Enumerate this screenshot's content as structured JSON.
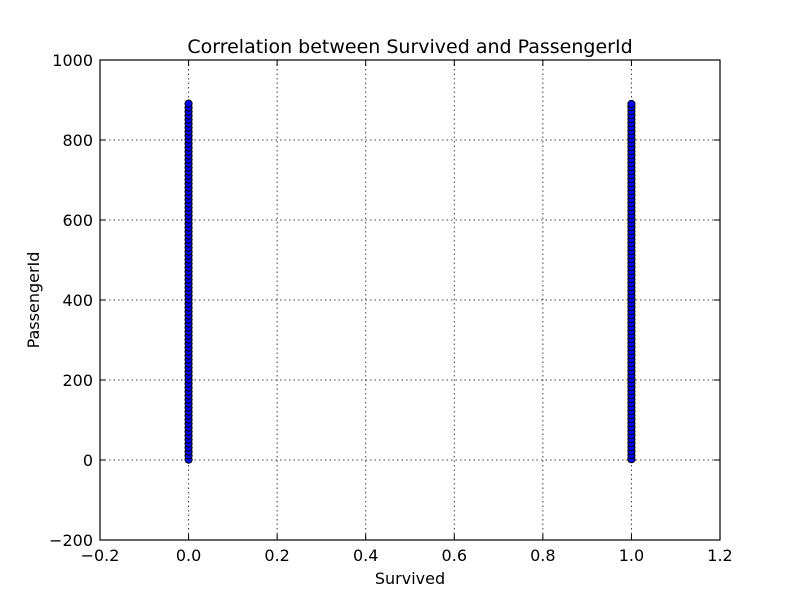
{
  "chart_data": {
    "type": "scatter",
    "title": "Correlation between Survived and PassengerId",
    "xlabel": "Survived",
    "ylabel": "PassengerId",
    "xlim": [
      -0.2,
      1.2
    ],
    "ylim": [
      -200,
      1000
    ],
    "x_ticks": [
      -0.2,
      0.0,
      0.2,
      0.4,
      0.6,
      0.8,
      1.0,
      1.2
    ],
    "x_tick_labels": [
      "−0.2",
      "0.0",
      "0.2",
      "0.4",
      "0.6",
      "0.8",
      "1.0",
      "1.2"
    ],
    "y_ticks": [
      -200,
      0,
      200,
      400,
      600,
      800,
      1000
    ],
    "y_tick_labels": [
      "−200",
      "0",
      "200",
      "400",
      "600",
      "800",
      "1000"
    ],
    "grid": true,
    "colors": {
      "marker_fill": "#0000ff",
      "marker_edge": "#000000"
    },
    "series": [
      {
        "x": [
          0,
          0,
          0,
          0,
          0,
          0,
          0,
          0,
          0,
          0,
          0,
          0,
          0,
          0,
          0,
          0,
          0,
          0,
          0,
          0,
          0,
          0,
          0,
          0,
          0,
          0,
          0,
          0,
          0,
          0,
          0,
          0,
          0,
          0,
          0,
          0,
          0,
          0,
          0,
          0,
          0,
          0,
          0,
          0,
          0,
          0,
          0,
          0,
          0,
          0,
          0,
          0,
          0,
          0,
          0,
          0,
          0,
          0,
          0,
          0,
          0,
          0,
          0,
          0,
          0,
          0,
          0,
          0,
          0,
          0,
          0,
          0,
          0,
          0,
          0,
          0,
          0,
          0,
          0,
          0,
          0,
          0,
          0,
          0,
          0,
          0,
          0,
          0,
          0,
          0,
          1,
          1,
          1,
          1,
          1,
          1,
          1,
          1,
          1,
          1,
          1,
          1,
          1,
          1,
          1,
          1,
          1,
          1,
          1,
          1,
          1,
          1,
          1,
          1,
          1,
          1,
          1,
          1,
          1,
          1,
          1,
          1,
          1,
          1,
          1,
          1,
          1,
          1,
          1,
          1,
          1,
          1,
          1,
          1,
          1,
          1,
          1,
          1,
          1,
          1,
          1,
          1,
          1,
          1,
          1,
          1,
          1,
          1,
          1,
          1,
          1,
          1,
          1,
          1,
          1,
          1,
          1,
          1,
          1,
          1,
          1,
          1,
          1,
          1,
          1,
          1,
          1,
          1,
          1,
          1,
          1,
          1,
          1,
          1,
          1,
          1,
          1,
          1,
          1,
          1
        ],
        "y": [
          1,
          11,
          21,
          31,
          41,
          51,
          61,
          71,
          81,
          91,
          101,
          111,
          121,
          131,
          141,
          151,
          161,
          171,
          181,
          191,
          201,
          211,
          221,
          231,
          241,
          251,
          261,
          271,
          281,
          291,
          301,
          311,
          321,
          331,
          341,
          351,
          361,
          371,
          381,
          391,
          401,
          411,
          421,
          431,
          441,
          451,
          461,
          471,
          481,
          491,
          501,
          511,
          521,
          531,
          541,
          551,
          561,
          571,
          581,
          591,
          601,
          611,
          621,
          631,
          641,
          651,
          661,
          671,
          681,
          691,
          701,
          711,
          721,
          731,
          741,
          751,
          761,
          771,
          781,
          791,
          801,
          811,
          821,
          831,
          841,
          851,
          861,
          871,
          881,
          891,
          2,
          12,
          22,
          32,
          42,
          52,
          62,
          72,
          82,
          92,
          102,
          112,
          122,
          132,
          142,
          152,
          162,
          172,
          182,
          192,
          202,
          212,
          222,
          232,
          242,
          252,
          262,
          272,
          282,
          292,
          302,
          312,
          322,
          332,
          342,
          352,
          362,
          372,
          382,
          392,
          402,
          412,
          422,
          432,
          442,
          452,
          462,
          472,
          482,
          492,
          502,
          512,
          522,
          532,
          542,
          552,
          562,
          572,
          582,
          592,
          602,
          612,
          622,
          632,
          642,
          652,
          662,
          672,
          682,
          692,
          702,
          712,
          722,
          732,
          742,
          752,
          762,
          772,
          782,
          792,
          802,
          812,
          822,
          832,
          842,
          852,
          862,
          872,
          882,
          890
        ]
      }
    ]
  }
}
